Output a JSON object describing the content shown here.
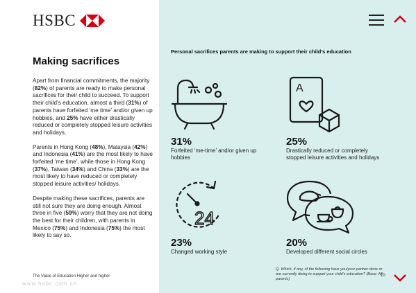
{
  "logo": {
    "text": "HSBC"
  },
  "title": "Making sacrifices",
  "body": {
    "p1": [
      {
        "t": "Apart from financial commitments, the majority ("
      },
      {
        "t": "82%",
        "b": true
      },
      {
        "t": ") of parents are ready to make personal sacrifices for their child to succeed. To support their child’s education, almost a third ("
      },
      {
        "t": "31%",
        "b": true
      },
      {
        "t": ") of parents have forfeited ‘me time’ and/or given up hobbies, and "
      },
      {
        "t": "25%",
        "b": true
      },
      {
        "t": " have either drastically reduced or completely stopped leisure activities and holidays."
      }
    ],
    "p2": [
      {
        "t": "Parents in Hong Kong ("
      },
      {
        "t": "48%",
        "b": true
      },
      {
        "t": "), Malaysia ("
      },
      {
        "t": "42%",
        "b": true
      },
      {
        "t": ") and Indonesia ("
      },
      {
        "t": "41%",
        "b": true
      },
      {
        "t": ") are the most likely to have forfeited ‘me time’, while those in Hong Kong ("
      },
      {
        "t": "37%",
        "b": true
      },
      {
        "t": "), Taiwan ("
      },
      {
        "t": "34%",
        "b": true
      },
      {
        "t": ") and China ("
      },
      {
        "t": "33%",
        "b": true
      },
      {
        "t": ") are the most likely to have reduced or completely stopped leisure activities/ holidays."
      }
    ],
    "p3": [
      {
        "t": "Despite making these sacrifices, parents are still not sure they are doing enough. Almost three in five ("
      },
      {
        "t": "59%",
        "b": true
      },
      {
        "t": ") worry that they are not doing the best for their children, with parents in Mexico ("
      },
      {
        "t": "75%",
        "b": true
      },
      {
        "t": ") and Indonesia ("
      },
      {
        "t": "75%",
        "b": true
      },
      {
        "t": ") the most likely to say so."
      }
    ]
  },
  "footer_left": "The Value of Education Higher and higher",
  "watermark": "www.hsbc.com.cn",
  "heading": "Personal sacrifices parents are making to support their child’s education",
  "stats": [
    {
      "value": "31%",
      "desc": "Forfeited ‘me-time’ and/or given up hobbies",
      "icon": "bathtub-icon"
    },
    {
      "value": "25%",
      "desc": "Drastically reduced or completely stopped leisure activities and holidays",
      "icon": "playing-card-dice-icon"
    },
    {
      "value": "23%",
      "desc": "Changed working style",
      "icon": "clock-24-icon"
    },
    {
      "value": "20%",
      "desc": "Developed different social circles",
      "icon": "speech-bubbles-icon"
    }
  ],
  "footnote": "Q. Which, if any, of the following have you/your partner done or are currently doing to support your child’s education? (Base: All parents)",
  "page_number": "10",
  "colors": {
    "panel": "#d9efee",
    "accent": "#db0011"
  }
}
